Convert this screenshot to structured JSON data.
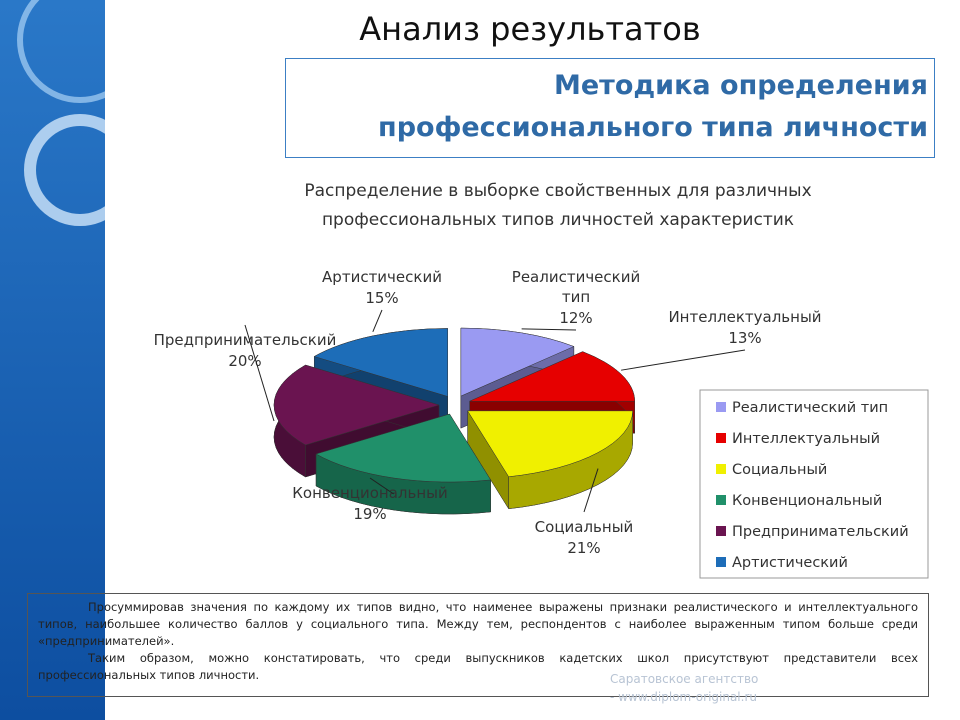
{
  "slide_title": "Анализ результатов",
  "header": {
    "line1": "Методика определения",
    "line2": "профессионального типа личности"
  },
  "chart_data": {
    "type": "pie",
    "title": [
      "Распределение в выборке свойственных для различных",
      "профессиональных типов личностей характеристик"
    ],
    "categories": [
      "Реалистический тип",
      "Интеллектуальный",
      "Социальный",
      "Конвенциональный",
      "Предпринимательский",
      "Артистический"
    ],
    "values": [
      12,
      13,
      21,
      19,
      20,
      15
    ],
    "value_labels": [
      "12%",
      "13%",
      "21%",
      "19%",
      "20%",
      "15%"
    ],
    "colors": [
      "#9a9af2",
      "#e60000",
      "#f0f000",
      "#20906a",
      "#6a1450",
      "#1d6db8"
    ],
    "legend": "right"
  },
  "text": [
    "Просуммировав значения по каждому их типов видно, что наименее выражены признаки реалистического и интеллектуального типов, наибольшее количество баллов у социального типа. Между тем, респондентов с наиболее выраженным типом больше среди «предпринимателей».",
    "Таким образом, можно констатировать, что среди выпускников кадетских школ присутствуют представители всех профессиональных типов личности."
  ],
  "watermark": [
    "Саратовское агентство",
    "- www.diplom-original.ru"
  ]
}
